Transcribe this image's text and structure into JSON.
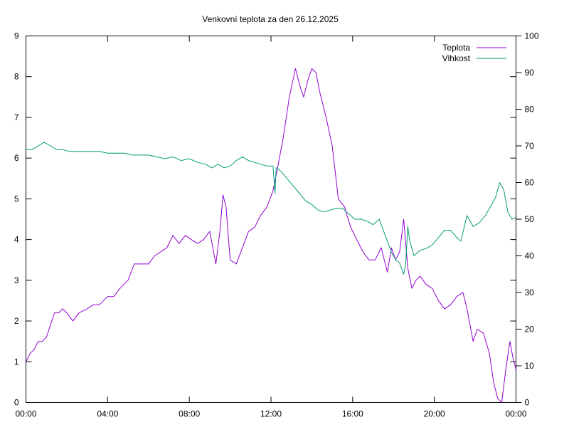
{
  "chart_data": {
    "type": "line",
    "title": "Venkovní teplota za den 26.12.2025",
    "xlabel": "",
    "ylabel": "",
    "y2label": "",
    "x_ticks": [
      "00:00",
      "04:00",
      "08:00",
      "12:00",
      "16:00",
      "20:00",
      "00:00"
    ],
    "xlim_hours": [
      0,
      24
    ],
    "ylim": [
      0,
      9
    ],
    "y_ticks": [
      0,
      1,
      2,
      3,
      4,
      5,
      6,
      7,
      8,
      9
    ],
    "y2lim": [
      0,
      100
    ],
    "y2_ticks": [
      0,
      10,
      20,
      30,
      40,
      50,
      60,
      70,
      80,
      90,
      100
    ],
    "grid": false,
    "legend_position": "top-right",
    "series": [
      {
        "name": "Teplota",
        "axis": "left",
        "color": "#9400d3",
        "x_hours": [
          0,
          0.2,
          0.4,
          0.6,
          0.8,
          1.0,
          1.2,
          1.4,
          1.6,
          1.8,
          2.0,
          2.3,
          2.6,
          3.0,
          3.3,
          3.6,
          4.0,
          4.3,
          4.6,
          5.0,
          5.3,
          5.6,
          6.0,
          6.3,
          6.6,
          6.9,
          7.2,
          7.5,
          7.8,
          8.1,
          8.4,
          8.7,
          9.0,
          9.3,
          9.5,
          9.65,
          9.8,
          10.0,
          10.3,
          10.6,
          10.9,
          11.2,
          11.5,
          11.8,
          12.1,
          12.3,
          12.6,
          12.9,
          13.2,
          13.4,
          13.6,
          13.8,
          14.0,
          14.2,
          14.4,
          14.7,
          15.0,
          15.3,
          15.6,
          15.9,
          16.2,
          16.5,
          16.8,
          17.1,
          17.4,
          17.7,
          17.9,
          18.1,
          18.3,
          18.5,
          18.7,
          18.9,
          19.1,
          19.3,
          19.6,
          19.9,
          20.2,
          20.5,
          20.8,
          21.1,
          21.4,
          21.6,
          21.9,
          22.1,
          22.4,
          22.7,
          22.9,
          23.1,
          23.3,
          23.5,
          23.7,
          23.85,
          24.0
        ],
        "values": [
          1.0,
          1.2,
          1.3,
          1.5,
          1.5,
          1.6,
          1.9,
          2.2,
          2.2,
          2.3,
          2.2,
          2.0,
          2.2,
          2.3,
          2.4,
          2.4,
          2.6,
          2.6,
          2.8,
          3.0,
          3.4,
          3.4,
          3.4,
          3.6,
          3.7,
          3.8,
          4.1,
          3.9,
          4.1,
          4.0,
          3.9,
          4.0,
          4.2,
          3.4,
          4.2,
          5.1,
          4.8,
          3.5,
          3.4,
          3.8,
          4.2,
          4.3,
          4.6,
          4.8,
          5.2,
          5.7,
          6.5,
          7.5,
          8.2,
          7.8,
          7.5,
          7.9,
          8.2,
          8.1,
          7.6,
          7.0,
          6.3,
          5.0,
          4.8,
          4.3,
          4.0,
          3.7,
          3.5,
          3.5,
          3.8,
          3.2,
          3.8,
          3.5,
          3.7,
          4.5,
          3.3,
          2.8,
          3.0,
          3.1,
          2.9,
          2.8,
          2.5,
          2.3,
          2.4,
          2.6,
          2.7,
          2.3,
          1.5,
          1.8,
          1.7,
          1.2,
          0.5,
          0.1,
          0.0,
          0.8,
          1.5,
          1.1,
          0.8
        ]
      },
      {
        "name": "Vlhkost",
        "axis": "right",
        "color": "#009e73",
        "x_hours": [
          0,
          0.3,
          0.6,
          0.9,
          1.2,
          1.5,
          1.8,
          2.1,
          2.4,
          2.7,
          3.0,
          3.3,
          3.6,
          4.0,
          4.4,
          4.8,
          5.2,
          5.6,
          6.0,
          6.4,
          6.8,
          7.2,
          7.6,
          8.0,
          8.4,
          8.8,
          9.1,
          9.4,
          9.7,
          10.0,
          10.3,
          10.6,
          10.9,
          11.2,
          11.5,
          11.8,
          12.1,
          12.2,
          12.25,
          12.3,
          12.5,
          12.8,
          13.1,
          13.4,
          13.7,
          14.0,
          14.3,
          14.6,
          14.9,
          15.2,
          15.5,
          15.8,
          16.1,
          16.4,
          16.7,
          17.0,
          17.3,
          17.5,
          17.7,
          17.9,
          18.1,
          18.3,
          18.5,
          18.6,
          18.7,
          18.8,
          19.0,
          19.3,
          19.6,
          19.9,
          20.2,
          20.5,
          20.8,
          21.1,
          21.3,
          21.6,
          21.9,
          22.2,
          22.5,
          22.8,
          23.0,
          23.2,
          23.4,
          23.6,
          23.8,
          24.0
        ],
        "values": [
          69,
          69,
          70,
          71,
          70,
          69,
          69,
          68.5,
          68.5,
          68.5,
          68.5,
          68.5,
          68.5,
          68,
          68,
          68,
          67.5,
          67.5,
          67.5,
          67,
          66.5,
          67,
          66,
          66.5,
          65.5,
          65,
          64,
          65,
          64,
          64.5,
          66,
          67,
          66,
          65.5,
          65,
          64.5,
          64.5,
          57,
          64,
          64,
          63,
          61,
          59,
          57,
          55,
          54,
          52.5,
          52,
          52.5,
          53,
          53,
          51.5,
          50,
          50,
          49.5,
          48.5,
          50,
          47,
          44,
          41,
          39,
          38,
          35,
          38,
          48,
          44,
          40,
          41.5,
          42,
          43,
          45,
          47,
          47,
          45,
          44,
          51,
          48,
          49,
          51,
          54,
          56,
          60,
          58,
          52,
          50,
          50.5
        ]
      }
    ]
  }
}
